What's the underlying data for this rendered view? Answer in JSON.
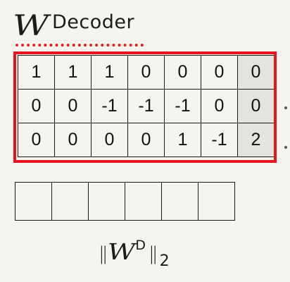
{
  "title": {
    "symbol": "W",
    "superscript": "Decoder"
  },
  "matrix": {
    "rows": [
      [
        "1",
        "1",
        "1",
        "0",
        "0",
        "0",
        "0"
      ],
      [
        "0",
        "0",
        "-1",
        "-1",
        "-1",
        "0",
        "0"
      ],
      [
        "0",
        "0",
        "0",
        "0",
        "1",
        "-1",
        "2"
      ]
    ],
    "highlight_color": "#e8141c"
  },
  "norm_row": {
    "cells": [
      "",
      "",
      "",
      "",
      "",
      ""
    ]
  },
  "norm_label": {
    "left_bars": "||",
    "symbol": "W",
    "superscript": "D",
    "right_bars": "||",
    "subscript": "2"
  }
}
